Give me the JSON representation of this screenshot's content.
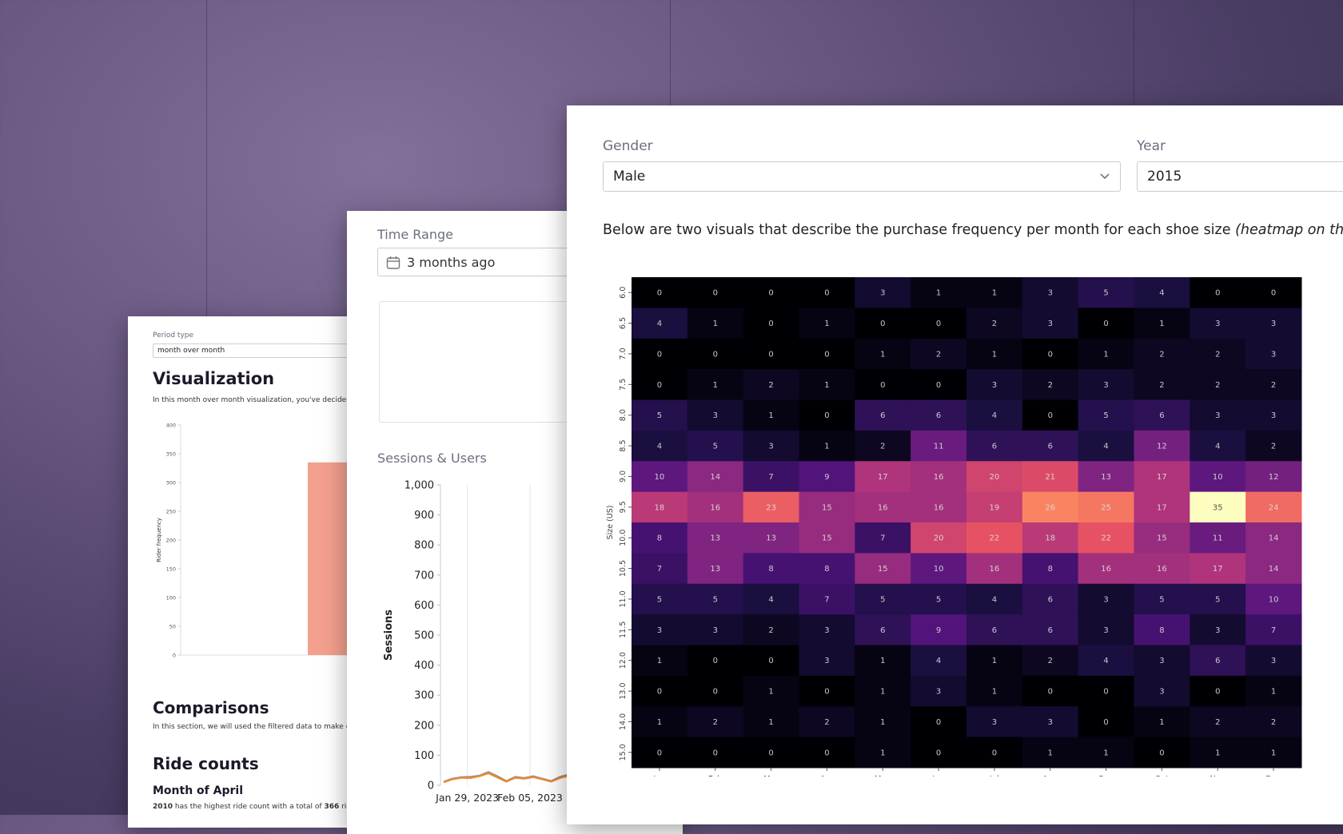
{
  "left_card": {
    "period_type_label": "Period type",
    "period_type_value": "month over month",
    "heading": "Visualization",
    "intro": "In this month over month visualization, you've decided to c",
    "chart": {
      "type": "bar",
      "y_label": "Rider frequency",
      "values": [
        335
      ],
      "color": "#f4a08e",
      "ylim": [
        0,
        400
      ],
      "yticks": [
        0,
        50,
        100,
        150,
        200,
        250,
        300,
        350,
        400
      ]
    },
    "comparisons_heading": "Comparisons",
    "comparisons_text": "In this section, we will used the filtered data to make comp",
    "ride_counts_heading": "Ride counts",
    "month_heading": "Month of April",
    "summary_parts": [
      "2010",
      " has the highest ride count with a total of ",
      "366",
      " rides"
    ]
  },
  "middle_card": {
    "time_range_label": "Time Range",
    "time_range_value": "3 months ago",
    "section_title": "Sessions & Users",
    "chart": {
      "type": "line",
      "y_label": "Sessions",
      "categories": [
        null,
        null,
        null,
        "Jan 29, 2023",
        null,
        null,
        null,
        null,
        null,
        null,
        "Feb 05, 2023",
        null,
        null,
        null,
        null
      ],
      "series": [
        {
          "color": "#8c8c8c",
          "values": [
            12,
            22,
            27,
            28,
            32,
            44,
            30,
            14,
            28,
            24,
            30,
            22,
            14,
            28,
            36
          ]
        },
        {
          "color": "#f08a2c",
          "values": [
            10,
            20,
            25,
            24,
            30,
            40,
            26,
            12,
            25,
            22,
            27,
            20,
            12,
            24,
            32
          ]
        }
      ],
      "ylim": [
        0,
        1000
      ],
      "yticks": [
        0,
        100,
        200,
        300,
        400,
        500,
        600,
        700,
        800,
        900,
        {
          "value": 1000,
          "label": "1,000"
        }
      ]
    }
  },
  "right_card": {
    "gender_label": "Gender",
    "gender_value": "Male",
    "year_label": "Year",
    "year_value": "2015",
    "description": "Below are two visuals that describe the purchase frequency per month for each shoe size ",
    "description_italic": "(heatmap on the le",
    "heatmap": {
      "type": "heatmap",
      "y_label": "Size (US)",
      "columns": [
        "Jan",
        "Feb",
        "Mar",
        "Apr",
        "May",
        "Jun",
        "Jul",
        "Aug",
        "Sep",
        "Oct",
        "Nov",
        "Dec"
      ],
      "rows": [
        "6.0",
        "6.5",
        "7.0",
        "7.5",
        "8.0",
        "8.5",
        "9.0",
        "9.5",
        "10.0",
        "10.5",
        "11.0",
        "11.5",
        "12.0",
        "13.0",
        "14.0",
        "15.0"
      ],
      "colormap": "magma",
      "value_range": [
        0,
        35
      ],
      "values": [
        [
          0,
          0,
          0,
          0,
          3,
          1,
          1,
          3,
          5,
          4,
          0,
          0
        ],
        [
          4,
          1,
          0,
          1,
          0,
          0,
          2,
          3,
          0,
          1,
          3,
          3
        ],
        [
          0,
          0,
          0,
          0,
          1,
          2,
          1,
          0,
          1,
          2,
          2,
          3
        ],
        [
          0,
          1,
          2,
          1,
          0,
          0,
          3,
          2,
          3,
          2,
          2,
          2
        ],
        [
          5,
          3,
          1,
          0,
          6,
          6,
          4,
          0,
          5,
          6,
          3,
          3
        ],
        [
          4,
          5,
          3,
          1,
          2,
          11,
          6,
          6,
          4,
          12,
          4,
          2
        ],
        [
          10,
          14,
          7,
          9,
          17,
          16,
          20,
          21,
          13,
          17,
          10,
          12
        ],
        [
          18,
          16,
          23,
          15,
          16,
          16,
          19,
          26,
          25,
          17,
          35,
          24
        ],
        [
          8,
          13,
          13,
          15,
          7,
          20,
          22,
          18,
          22,
          15,
          11,
          14
        ],
        [
          7,
          13,
          8,
          8,
          15,
          10,
          16,
          8,
          16,
          16,
          17,
          14
        ],
        [
          5,
          5,
          4,
          7,
          5,
          5,
          4,
          6,
          3,
          5,
          5,
          10
        ],
        [
          3,
          3,
          2,
          3,
          6,
          9,
          6,
          6,
          3,
          8,
          3,
          7
        ],
        [
          1,
          0,
          0,
          3,
          1,
          4,
          1,
          2,
          4,
          3,
          6,
          3
        ],
        [
          0,
          0,
          1,
          0,
          1,
          3,
          1,
          0,
          0,
          3,
          0,
          1
        ],
        [
          1,
          2,
          1,
          2,
          1,
          0,
          3,
          3,
          0,
          1,
          2,
          2
        ],
        [
          0,
          0,
          0,
          0,
          1,
          0,
          0,
          1,
          1,
          0,
          1,
          1
        ]
      ]
    }
  }
}
